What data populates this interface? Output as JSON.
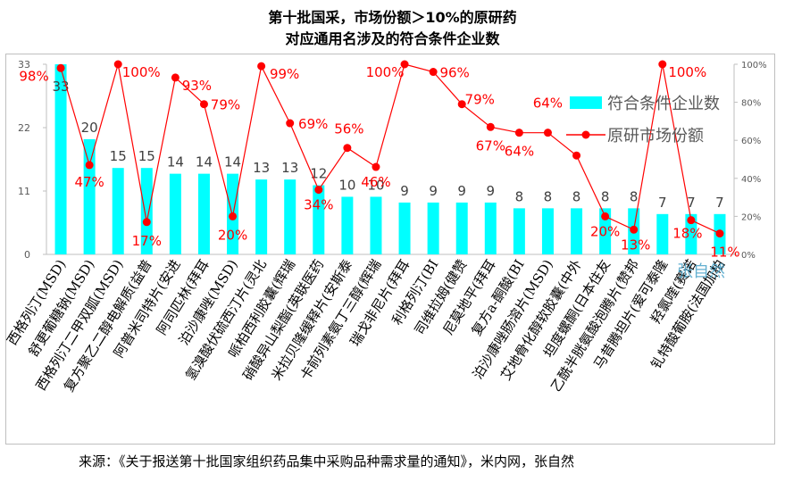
{
  "title_line1": "第十批国采，市场份额＞10%的原研药",
  "title_line2": "对应通用名涉及的符合条件企业数",
  "source": "来源：《关于报送第十批国家组织药品集中采购品种需求量的通知》，米内网，张自然",
  "watermark": "张自然",
  "colors": {
    "bar": "#00ffff",
    "line": "#ff0000",
    "grid": "#d9d9d9",
    "axis_text": "#595959"
  },
  "chart_data": {
    "type": "bar",
    "categories": [
      "西格列汀(MSD)",
      "舒更葡糖钠(MSD)",
      "西格列汀二甲双胍(MSD)",
      "复方聚乙二醇电解质(益普",
      "阿普米司特片(安进",
      "阿司匹林(拜耳",
      "泊沙康唑(MSD)",
      "氢溴酸伏硫西汀片(灵北",
      "哌柏西利胶囊(辉瑞",
      "硝酸异山梨酯(英联医药",
      "米拉贝隆缓释片(安斯泰",
      "卡前列素氨丁三醇(辉瑞",
      "瑞戈非尼片(拜耳",
      "利格列汀(BI",
      "司维拉姆(健赞",
      "尼莫地平(拜耳",
      "复方a-酮酸(BI",
      "泊沙康唑肠溶片(MSD)",
      "艾地骨化醇软胶囊(中外",
      "坦度螺酮(日本住友",
      "乙酰半胱氨酸泡腾片(赞邦",
      "马昔腾坦片(爱可泰隆",
      "羟氯喹(赛诺",
      "钆特酸葡胺(法国加柏"
    ],
    "series": [
      {
        "name": "符合条件企业数",
        "type": "bar",
        "axis": "left",
        "values": [
          33,
          20,
          15,
          15,
          14,
          14,
          14,
          13,
          13,
          12,
          10,
          10,
          9,
          9,
          9,
          9,
          8,
          8,
          8,
          8,
          8,
          7,
          7,
          7
        ]
      },
      {
        "name": "原研市场份额",
        "type": "line",
        "axis": "right",
        "values": [
          98,
          47,
          100,
          17,
          93,
          79,
          20,
          99,
          69,
          34,
          56,
          46,
          100,
          96,
          79,
          67,
          64,
          64,
          52,
          20,
          13,
          100,
          18,
          11
        ]
      }
    ],
    "line_labels": [
      "98%",
      "47%",
      "100%",
      "17%",
      "93%",
      "79%",
      "20%",
      "99%",
      "69%",
      "34%",
      "56%",
      "46%",
      "100%",
      "96%",
      "79%",
      "67%",
      "64%",
      "64%",
      "",
      "20%",
      "13%",
      "100%",
      "18%",
      "11%"
    ],
    "y_left": {
      "ticks": [
        "0",
        "11",
        "22",
        "33"
      ],
      "ylim": [
        0,
        33
      ]
    },
    "y_right": {
      "ticks": [
        "0%",
        "20%",
        "40%",
        "60%",
        "80%",
        "100%"
      ],
      "ylim": [
        0,
        100
      ]
    },
    "legend_position": "right",
    "grid": false
  }
}
